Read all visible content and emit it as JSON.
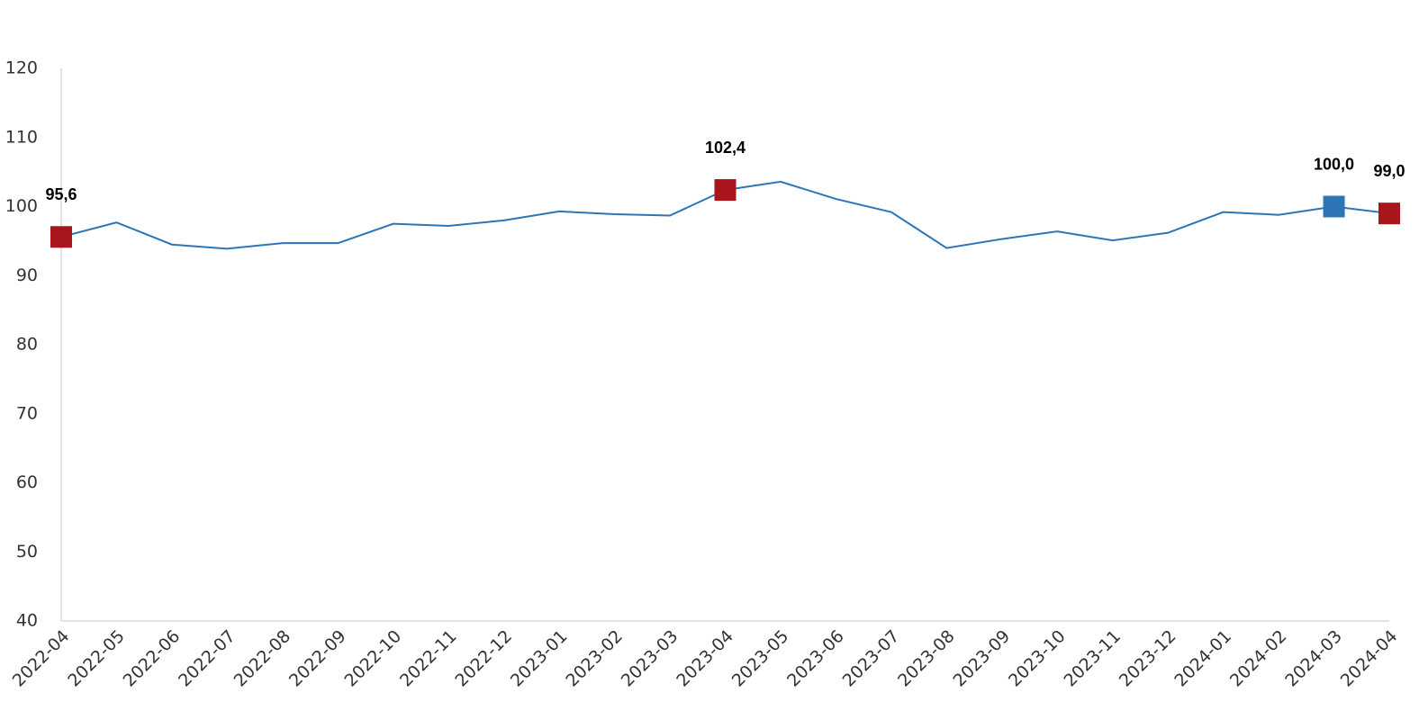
{
  "chart_data": {
    "type": "line",
    "categories": [
      "2022-04",
      "2022-05",
      "2022-06",
      "2022-07",
      "2022-08",
      "2022-09",
      "2022-10",
      "2022-11",
      "2022-12",
      "2023-01",
      "2023-02",
      "2023-03",
      "2023-04",
      "2023-05",
      "2023-06",
      "2023-07",
      "2023-08",
      "2023-09",
      "2023-10",
      "2023-11",
      "2023-12",
      "2024-01",
      "2024-02",
      "2024-03",
      "2024-04"
    ],
    "series": [
      {
        "color": "#2e75b6",
        "values": [
          95.6,
          97.7,
          94.5,
          93.9,
          94.7,
          94.7,
          97.5,
          97.2,
          98.0,
          99.3,
          98.9,
          98.7,
          102.4,
          103.6,
          101.1,
          99.2,
          94.0,
          95.3,
          96.4,
          95.1,
          96.2,
          99.2,
          98.8,
          100.0,
          99.0
        ],
        "value_labels": [
          "95,6",
          null,
          null,
          null,
          null,
          null,
          null,
          null,
          null,
          null,
          null,
          null,
          "102,4",
          null,
          null,
          null,
          null,
          null,
          null,
          null,
          null,
          null,
          null,
          "100,0",
          "99,0"
        ],
        "marker_colors": [
          "#a8151b",
          null,
          null,
          null,
          null,
          null,
          null,
          null,
          null,
          null,
          null,
          null,
          "#a8151b",
          null,
          null,
          null,
          null,
          null,
          null,
          null,
          null,
          null,
          null,
          "#2e75b6",
          "#a8151b"
        ]
      }
    ],
    "ylim": [
      40,
      120
    ],
    "yticks": [
      40,
      50,
      60,
      70,
      80,
      90,
      100,
      110,
      120
    ],
    "grid": false
  }
}
